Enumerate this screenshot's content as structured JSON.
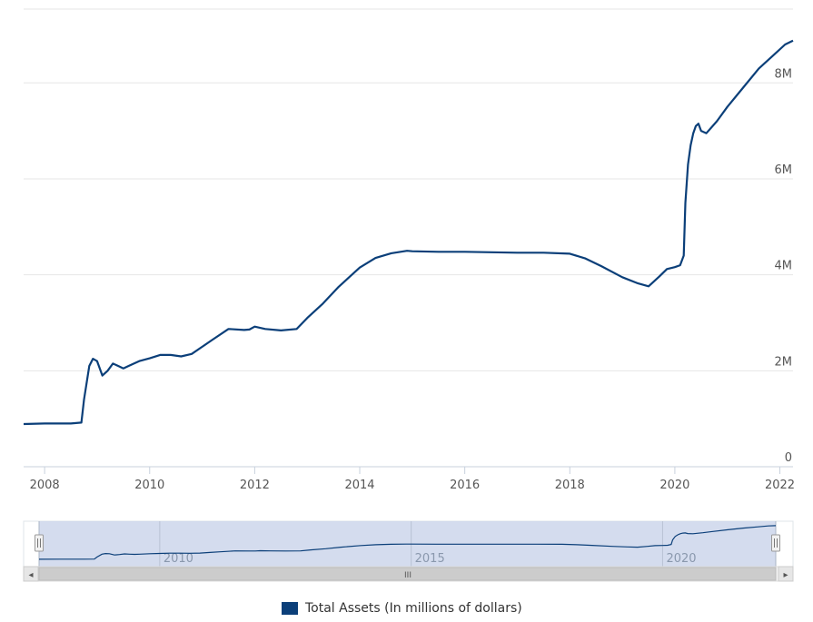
{
  "chart_data": {
    "type": "line",
    "title": "",
    "xlabel": "",
    "ylabel": "",
    "xlim": [
      2007.6,
      2022.25
    ],
    "ylim": [
      0,
      9.5
    ],
    "y_ticks": [
      {
        "value": 0,
        "label": "0"
      },
      {
        "value": 2,
        "label": "2M"
      },
      {
        "value": 4,
        "label": "4M"
      },
      {
        "value": 6,
        "label": "6M"
      },
      {
        "value": 8,
        "label": "8M"
      }
    ],
    "x_ticks": [
      {
        "value": 2008,
        "label": "2008"
      },
      {
        "value": 2010,
        "label": "2010"
      },
      {
        "value": 2012,
        "label": "2012"
      },
      {
        "value": 2014,
        "label": "2014"
      },
      {
        "value": 2016,
        "label": "2016"
      },
      {
        "value": 2018,
        "label": "2018"
      },
      {
        "value": 2020,
        "label": "2020"
      },
      {
        "value": 2022,
        "label": "2022"
      }
    ],
    "navigator_ticks": [
      {
        "value": 2010,
        "label": "2010"
      },
      {
        "value": 2015,
        "label": "2015"
      },
      {
        "value": 2020,
        "label": "2020"
      }
    ],
    "navigator_xlim": [
      2007.6,
      2022.25
    ],
    "series": [
      {
        "name": "Total Assets (In millions of dollars)",
        "color": "#0b3f79",
        "x": [
          2007.6,
          2008.0,
          2008.5,
          2008.7,
          2008.75,
          2008.85,
          2008.92,
          2009.0,
          2009.1,
          2009.2,
          2009.3,
          2009.4,
          2009.5,
          2009.6,
          2009.8,
          2010.0,
          2010.2,
          2010.4,
          2010.6,
          2010.8,
          2011.0,
          2011.2,
          2011.5,
          2011.8,
          2011.9,
          2012.0,
          2012.2,
          2012.5,
          2012.8,
          2013.0,
          2013.3,
          2013.6,
          2014.0,
          2014.3,
          2014.6,
          2014.9,
          2015.0,
          2015.5,
          2016.0,
          2016.5,
          2017.0,
          2017.5,
          2018.0,
          2018.3,
          2018.6,
          2019.0,
          2019.3,
          2019.5,
          2019.7,
          2019.85,
          2020.0,
          2020.1,
          2020.17,
          2020.2,
          2020.25,
          2020.3,
          2020.35,
          2020.4,
          2020.45,
          2020.5,
          2020.6,
          2020.8,
          2021.0,
          2021.3,
          2021.6,
          2021.9,
          2022.1,
          2022.25
        ],
        "values": [
          0.89,
          0.9,
          0.9,
          0.92,
          1.4,
          2.1,
          2.25,
          2.2,
          1.9,
          2.0,
          2.15,
          2.1,
          2.05,
          2.1,
          2.2,
          2.26,
          2.33,
          2.33,
          2.3,
          2.35,
          2.5,
          2.65,
          2.87,
          2.85,
          2.86,
          2.92,
          2.87,
          2.84,
          2.87,
          3.1,
          3.4,
          3.75,
          4.15,
          4.35,
          4.45,
          4.5,
          4.49,
          4.48,
          4.48,
          4.47,
          4.46,
          4.46,
          4.44,
          4.34,
          4.18,
          3.95,
          3.82,
          3.76,
          3.96,
          4.12,
          4.16,
          4.2,
          4.4,
          5.5,
          6.3,
          6.7,
          6.95,
          7.1,
          7.15,
          7.0,
          6.95,
          7.2,
          7.5,
          7.9,
          8.3,
          8.6,
          8.8,
          8.88
        ]
      }
    ]
  },
  "legend": {
    "label": "Total Assets (In millions of dollars)",
    "color": "#0b3f79"
  },
  "navigator": {
    "scroll_center_glyph": "III",
    "left_arrow_glyph": "◂",
    "right_arrow_glyph": "▸",
    "handle_glyph": "||"
  }
}
